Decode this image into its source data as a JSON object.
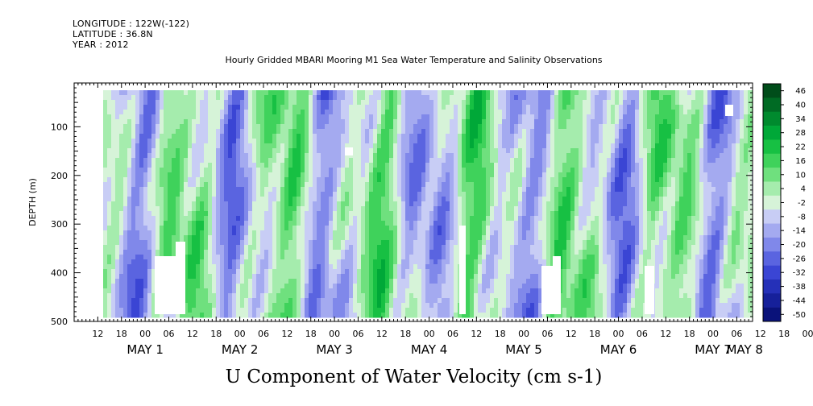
{
  "header": {
    "longitude": "LONGITUDE : 122W(-122)",
    "latitude": "LATITUDE : 36.8N",
    "year": "YEAR : 2012"
  },
  "chart_data": {
    "type": "heatmap",
    "title": "Hourly Gridded MBARI Mooring M1 Sea Water Temperature and Salinity Observations",
    "caption": "U Component of Water Velocity (cm s-1)",
    "ylabel": "DEPTH (m)",
    "ylim": [
      500,
      10
    ],
    "y_ticks": [
      100,
      200,
      300,
      400,
      500
    ],
    "x_range_hours": [
      "MAY 1 06:00",
      "MAY 8 10:00"
    ],
    "x_hour_ticks": [
      "12",
      "18",
      "00",
      "06",
      "12",
      "18",
      "00",
      "06",
      "12",
      "18",
      "00",
      "06",
      "12",
      "18",
      "00",
      "06",
      "12",
      "18",
      "00",
      "06",
      "12",
      "18",
      "00",
      "06",
      "12",
      "18",
      "00",
      "06",
      "12",
      "18",
      "00",
      "06"
    ],
    "x_day_labels": [
      "MAY  1",
      "MAY  2",
      "MAY  3",
      "MAY  4",
      "MAY  5",
      "MAY  6",
      "MAY  7",
      "MAY  8"
    ],
    "colorbar": {
      "levels": [
        46,
        40,
        34,
        28,
        22,
        16,
        10,
        4,
        -2,
        -8,
        -14,
        -20,
        -26,
        -32,
        -38,
        -44,
        -50
      ],
      "colors": [
        "#004d1a",
        "#006b24",
        "#008a2e",
        "#00a838",
        "#17c043",
        "#3fd25b",
        "#6fe07e",
        "#a5ecad",
        "#d6f3d8",
        "#c8cdf5",
        "#a4aaf0",
        "#8088ea",
        "#5a64e0",
        "#3a45d4",
        "#2530b8",
        "#16209a",
        "#0a127a"
      ]
    },
    "field_range": [
      -30,
      30
    ],
    "field_pattern": "alternating vertical bands of positive (green) and negative (blue) velocity spanning depth 10-490 m, data gaps near bottom"
  }
}
